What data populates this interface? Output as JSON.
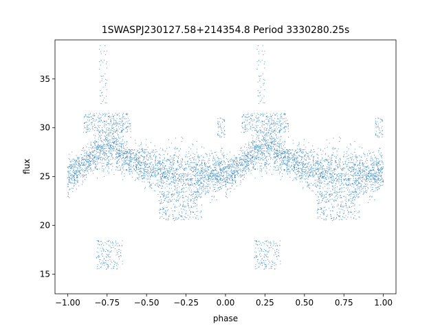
{
  "chart_data": {
    "type": "scatter",
    "title": "1SWASPJ230127.58+214354.8 Period 3330280.25s",
    "xlabel": "phase",
    "ylabel": "flux",
    "xlim": [
      -1.08,
      1.08
    ],
    "ylim": [
      13.0,
      39.0
    ],
    "xticks": [
      -1.0,
      -0.75,
      -0.5,
      -0.25,
      0.0,
      0.25,
      0.5,
      0.75,
      1.0
    ],
    "xtick_labels": [
      "−1.00",
      "−0.75",
      "−0.50",
      "−0.25",
      "0.00",
      "0.25",
      "0.50",
      "0.75",
      "1.00"
    ],
    "yticks": [
      15,
      20,
      25,
      30,
      35
    ],
    "ytick_labels": [
      "15",
      "20",
      "25",
      "30",
      "35"
    ],
    "grid": false,
    "legend": "none",
    "marker_color": "#1f77b4",
    "profile": {
      "phase": [
        0.0,
        0.05,
        0.1,
        0.15,
        0.2,
        0.25,
        0.3,
        0.35,
        0.4,
        0.45,
        0.5,
        0.55,
        0.6,
        0.65,
        0.7,
        0.75,
        0.8,
        0.85,
        0.9,
        0.95,
        1.0
      ],
      "flux_center": [
        25.0,
        25.5,
        26.2,
        26.8,
        27.5,
        28.0,
        28.0,
        27.3,
        26.8,
        26.3,
        26.0,
        25.8,
        25.5,
        25.5,
        25.2,
        25.3,
        25.5,
        25.3,
        25.3,
        25.5,
        25.5
      ],
      "flux_spread": [
        1.8,
        1.5,
        1.5,
        1.5,
        1.8,
        2.0,
        2.0,
        1.8,
        1.6,
        1.6,
        1.8,
        2.0,
        2.0,
        2.2,
        2.4,
        2.4,
        2.2,
        2.0,
        2.2,
        2.0,
        1.8
      ]
    },
    "bands": [
      {
        "phase": [
          0.1,
          0.4
        ],
        "flux": [
          29.5,
          31.5
        ]
      },
      {
        "phase": [
          0.2,
          0.25
        ],
        "flux": [
          32.0,
          38.5
        ]
      },
      {
        "phase": [
          0.58,
          0.85
        ],
        "flux": [
          20.5,
          23.5
        ]
      },
      {
        "phase": [
          0.95,
          1.0
        ],
        "flux": [
          29.0,
          31.0
        ]
      },
      {
        "phase": [
          0.18,
          0.35
        ],
        "flux": [
          15.5,
          18.5
        ]
      }
    ]
  }
}
